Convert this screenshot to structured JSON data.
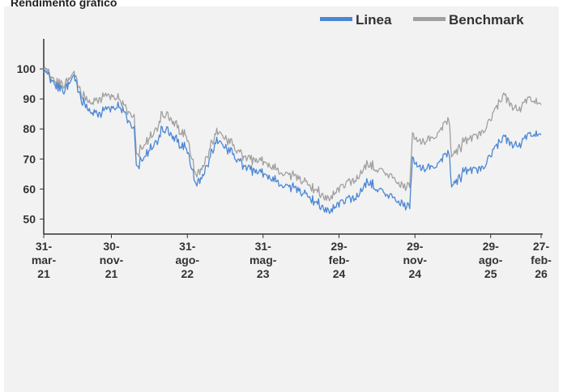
{
  "header": {
    "cut_title": "Rendimento grafico"
  },
  "chart_data": {
    "type": "line",
    "title": "",
    "xlabel": "",
    "ylabel": "",
    "ylim": [
      45,
      110
    ],
    "yticks": [
      50,
      60,
      70,
      80,
      90,
      100
    ],
    "xlim": [
      "2021-03-31",
      "2026-02-27"
    ],
    "xticks": [
      {
        "date": "2021-03-31",
        "lines": [
          "31-",
          "mar-",
          "21"
        ]
      },
      {
        "date": "2021-11-30",
        "lines": [
          "30-",
          "nov-",
          "21"
        ]
      },
      {
        "date": "2022-08-31",
        "lines": [
          "31-",
          "ago-",
          "22"
        ]
      },
      {
        "date": "2023-05-31",
        "lines": [
          "31-",
          "mag-",
          "23"
        ]
      },
      {
        "date": "2024-02-29",
        "lines": [
          "29-",
          "feb-",
          "24"
        ]
      },
      {
        "date": "2024-11-29",
        "lines": [
          "29-",
          "nov-",
          "24"
        ]
      },
      {
        "date": "2025-08-29",
        "lines": [
          "29-",
          "ago-",
          "25"
        ]
      },
      {
        "date": "2026-02-27",
        "lines": [
          "27-",
          "feb-",
          "26"
        ]
      }
    ],
    "legend_position": "top-right",
    "grid": false,
    "series": [
      {
        "name": "Linea",
        "color": "#4a86d4",
        "points": [
          [
            "2021-03-31",
            100
          ],
          [
            "2021-05-01",
            95
          ],
          [
            "2021-06-15",
            93
          ],
          [
            "2021-07-15",
            97
          ],
          [
            "2021-08-15",
            90
          ],
          [
            "2021-09-15",
            86
          ],
          [
            "2021-10-20",
            85
          ],
          [
            "2021-11-30",
            88
          ],
          [
            "2022-01-10",
            86
          ],
          [
            "2022-02-20",
            80
          ],
          [
            "2022-02-28",
            67
          ],
          [
            "2022-03-31",
            72
          ],
          [
            "2022-05-01",
            74
          ],
          [
            "2022-06-01",
            80
          ],
          [
            "2022-07-15",
            77
          ],
          [
            "2022-08-31",
            73
          ],
          [
            "2022-10-01",
            61
          ],
          [
            "2022-11-01",
            66
          ],
          [
            "2022-12-15",
            76
          ],
          [
            "2023-01-31",
            73
          ],
          [
            "2023-03-15",
            68
          ],
          [
            "2023-05-31",
            65
          ],
          [
            "2023-07-31",
            62
          ],
          [
            "2023-09-30",
            60
          ],
          [
            "2023-11-15",
            57
          ],
          [
            "2024-01-15",
            53
          ],
          [
            "2024-02-29",
            55
          ],
          [
            "2024-04-30",
            57
          ],
          [
            "2024-06-15",
            63
          ],
          [
            "2024-08-15",
            58
          ],
          [
            "2024-10-15",
            55
          ],
          [
            "2024-11-10",
            54
          ],
          [
            "2024-11-20",
            70
          ],
          [
            "2024-12-31",
            66
          ],
          [
            "2025-02-15",
            68
          ],
          [
            "2025-03-31",
            73
          ],
          [
            "2025-04-10",
            61
          ],
          [
            "2025-05-31",
            66
          ],
          [
            "2025-07-31",
            67
          ],
          [
            "2025-08-29",
            72
          ],
          [
            "2025-10-15",
            77
          ],
          [
            "2025-12-01",
            74
          ],
          [
            "2026-01-15",
            78
          ],
          [
            "2026-02-27",
            78
          ]
        ]
      },
      {
        "name": "Benchmark",
        "color": "#a0a0a0",
        "points": [
          [
            "2021-03-31",
            101
          ],
          [
            "2021-05-01",
            96
          ],
          [
            "2021-06-15",
            95
          ],
          [
            "2021-07-15",
            98
          ],
          [
            "2021-08-15",
            92
          ],
          [
            "2021-09-15",
            89
          ],
          [
            "2021-10-20",
            90
          ],
          [
            "2021-11-30",
            92
          ],
          [
            "2022-01-10",
            88
          ],
          [
            "2022-02-20",
            84
          ],
          [
            "2022-02-28",
            71
          ],
          [
            "2022-03-31",
            76
          ],
          [
            "2022-05-01",
            78
          ],
          [
            "2022-06-01",
            85
          ],
          [
            "2022-07-15",
            82
          ],
          [
            "2022-08-31",
            77
          ],
          [
            "2022-10-01",
            64
          ],
          [
            "2022-11-01",
            69
          ],
          [
            "2022-12-15",
            79
          ],
          [
            "2023-01-31",
            76
          ],
          [
            "2023-03-15",
            71
          ],
          [
            "2023-05-31",
            69
          ],
          [
            "2023-07-31",
            66
          ],
          [
            "2023-09-30",
            64
          ],
          [
            "2023-11-15",
            61
          ],
          [
            "2024-01-15",
            57
          ],
          [
            "2024-02-29",
            60
          ],
          [
            "2024-04-30",
            63
          ],
          [
            "2024-06-15",
            69
          ],
          [
            "2024-08-15",
            65
          ],
          [
            "2024-10-15",
            61
          ],
          [
            "2024-11-10",
            61
          ],
          [
            "2024-11-20",
            78
          ],
          [
            "2024-12-31",
            75
          ],
          [
            "2025-02-15",
            78
          ],
          [
            "2025-03-31",
            84
          ],
          [
            "2025-04-10",
            71
          ],
          [
            "2025-05-31",
            76
          ],
          [
            "2025-07-31",
            79
          ],
          [
            "2025-08-29",
            84
          ],
          [
            "2025-10-15",
            91
          ],
          [
            "2025-12-01",
            86
          ],
          [
            "2026-01-15",
            90
          ],
          [
            "2026-02-27",
            88
          ]
        ]
      }
    ]
  }
}
